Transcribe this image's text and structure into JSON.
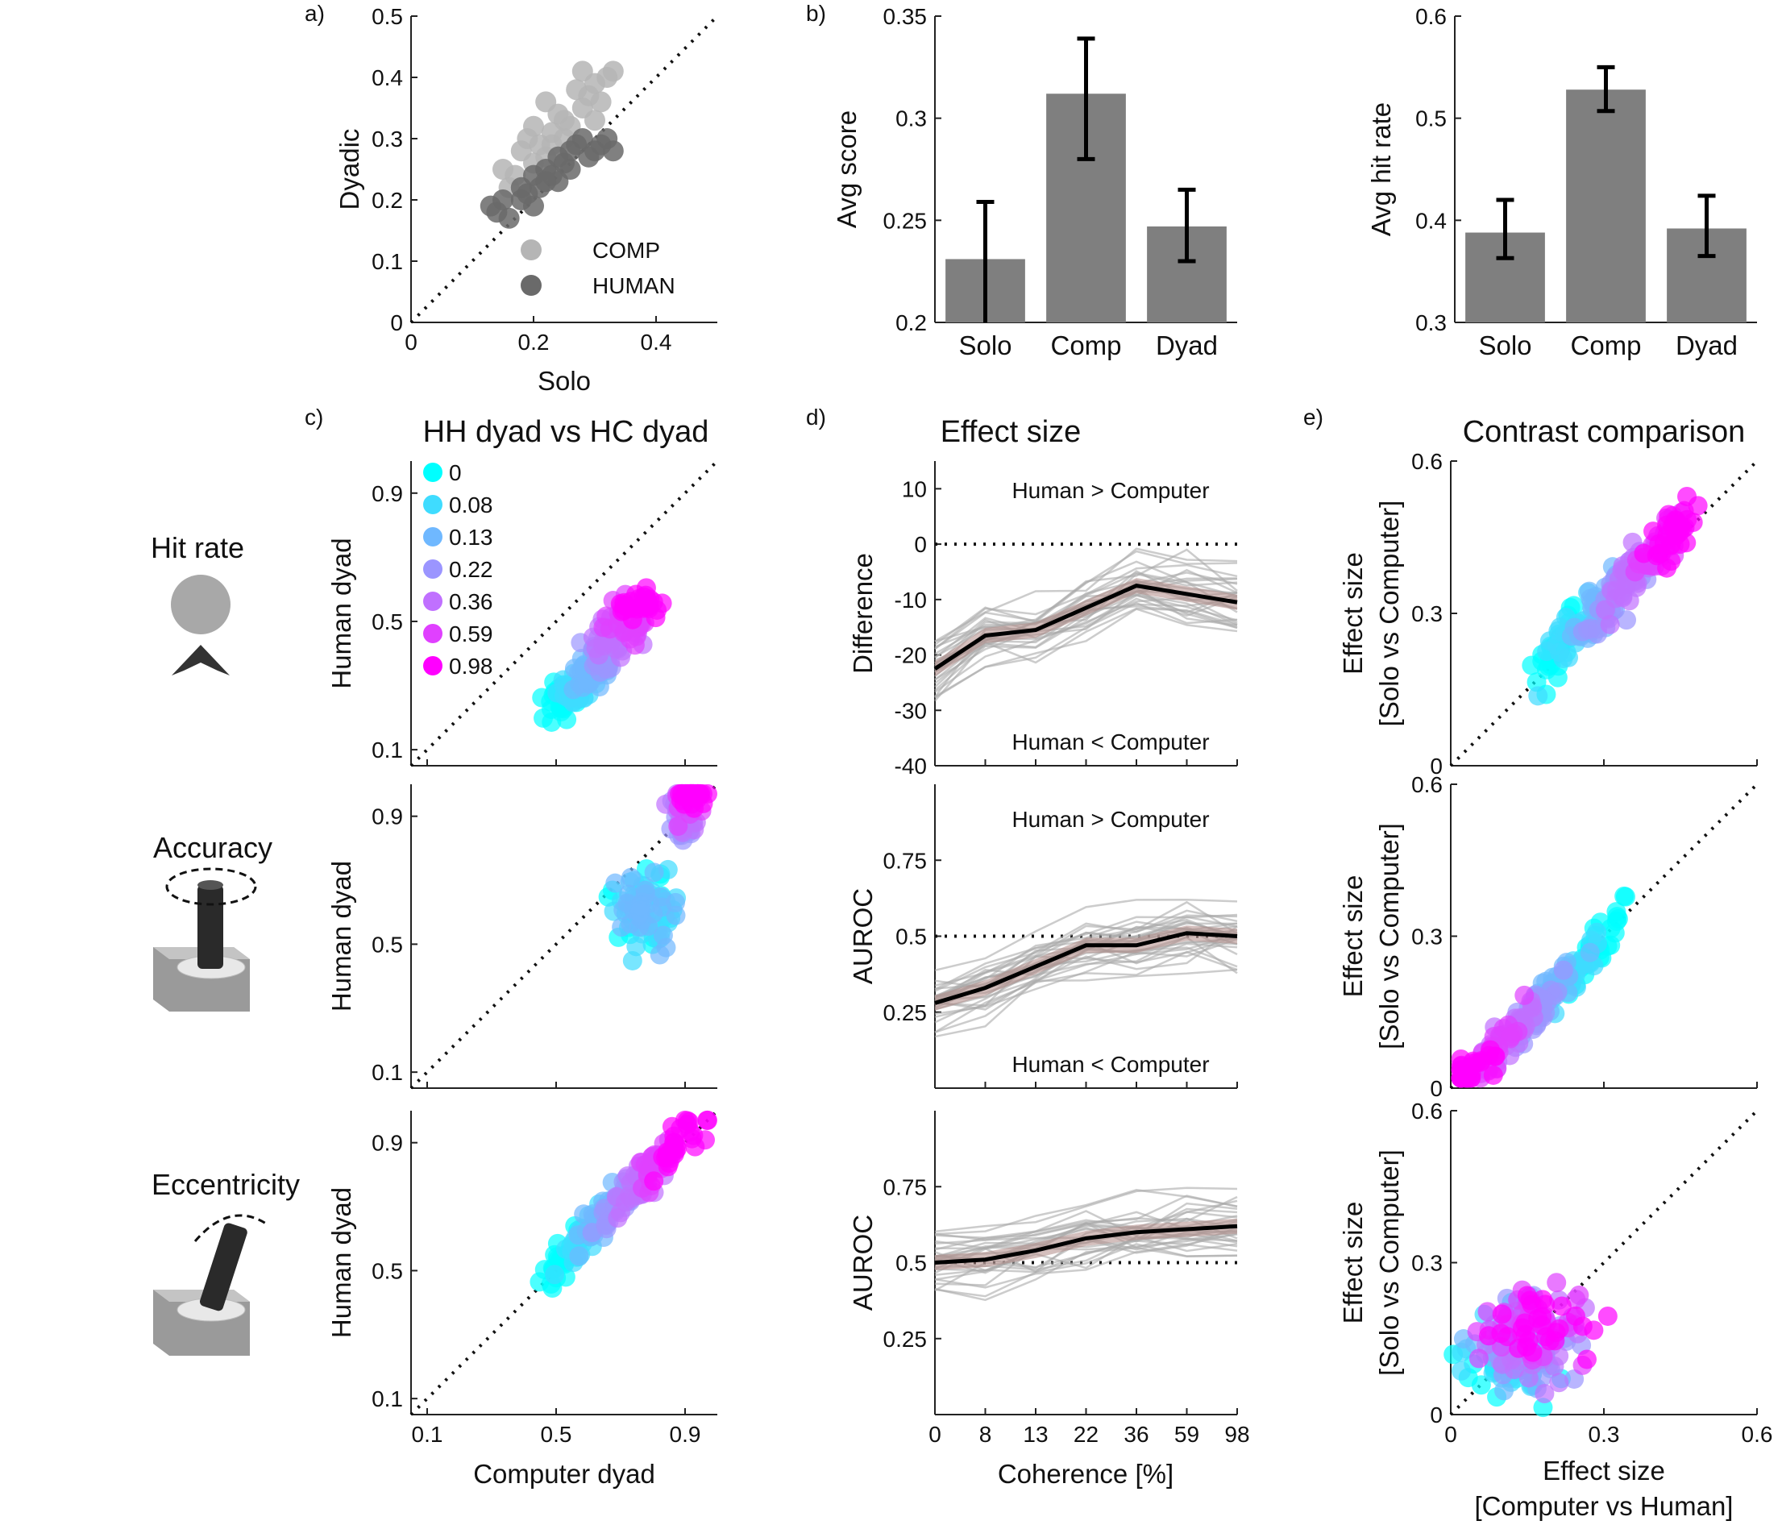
{
  "panel_labels": {
    "a": "a)",
    "b": "b)",
    "c": "c)",
    "d": "d)",
    "e": "e)"
  },
  "row_labels": {
    "hit": "Hit rate",
    "acc": "Accuracy",
    "ecc": "Eccentricity"
  },
  "titles": {
    "c": "HH dyad vs HC dyad",
    "d": "Effect size",
    "e": "Contrast comparison"
  },
  "annotations": {
    "gt": "Human > Computer",
    "lt": "Human < Computer"
  },
  "colors": {
    "comp": "#b5b5b5",
    "human": "#6a6a6a",
    "bar": "#7f7f7f",
    "coherence": [
      "#00ffff",
      "#3fdcff",
      "#6fb8ff",
      "#9b95ff",
      "#c070ff",
      "#e040ff",
      "#ff00ff"
    ],
    "mean_line": "#000000",
    "band": "#b08a86",
    "subject_lines": "#aaaaaa"
  },
  "chart_data": [
    {
      "id": "a",
      "type": "scatter",
      "xlabel": "Solo",
      "ylabel": "Dyadic",
      "xlim": [
        0,
        0.5
      ],
      "ylim": [
        0,
        0.5
      ],
      "xticks": [
        "0",
        "0.2",
        "0.4"
      ],
      "yticks": [
        "0",
        "0.1",
        "0.2",
        "0.3",
        "0.4",
        "0.5"
      ],
      "diagonal": true,
      "legend": "bottom-right",
      "series": [
        {
          "name": "COMP",
          "points": [
            [
              0.22,
              0.36
            ],
            [
              0.24,
              0.34
            ],
            [
              0.2,
              0.32
            ],
            [
              0.19,
              0.3
            ],
            [
              0.21,
              0.29
            ],
            [
              0.23,
              0.31
            ],
            [
              0.25,
              0.33
            ],
            [
              0.27,
              0.38
            ],
            [
              0.28,
              0.41
            ],
            [
              0.3,
              0.39
            ],
            [
              0.33,
              0.41
            ],
            [
              0.32,
              0.4
            ],
            [
              0.26,
              0.32
            ],
            [
              0.28,
              0.35
            ],
            [
              0.3,
              0.33
            ],
            [
              0.22,
              0.27
            ],
            [
              0.2,
              0.26
            ],
            [
              0.18,
              0.28
            ],
            [
              0.17,
              0.24
            ],
            [
              0.15,
              0.25
            ],
            [
              0.16,
              0.22
            ],
            [
              0.23,
              0.29
            ],
            [
              0.25,
              0.3
            ],
            [
              0.29,
              0.37
            ],
            [
              0.31,
              0.36
            ]
          ]
        },
        {
          "name": "HUMAN",
          "points": [
            [
              0.13,
              0.19
            ],
            [
              0.14,
              0.18
            ],
            [
              0.15,
              0.2
            ],
            [
              0.16,
              0.17
            ],
            [
              0.18,
              0.2
            ],
            [
              0.19,
              0.21
            ],
            [
              0.2,
              0.24
            ],
            [
              0.21,
              0.22
            ],
            [
              0.22,
              0.25
            ],
            [
              0.23,
              0.24
            ],
            [
              0.24,
              0.23
            ],
            [
              0.25,
              0.26
            ],
            [
              0.26,
              0.28
            ],
            [
              0.27,
              0.29
            ],
            [
              0.28,
              0.3
            ],
            [
              0.29,
              0.27
            ],
            [
              0.3,
              0.28
            ],
            [
              0.31,
              0.29
            ],
            [
              0.32,
              0.3
            ],
            [
              0.33,
              0.28
            ],
            [
              0.24,
              0.27
            ],
            [
              0.22,
              0.23
            ],
            [
              0.18,
              0.22
            ],
            [
              0.2,
              0.19
            ],
            [
              0.26,
              0.25
            ]
          ]
        }
      ]
    },
    {
      "id": "b1",
      "type": "bar",
      "ylabel": "Avg score",
      "categories": [
        "Solo",
        "Comp",
        "Dyad"
      ],
      "values": [
        0.231,
        0.312,
        0.247
      ],
      "errors": [
        [
          0.2,
          0.259
        ],
        [
          0.28,
          0.339
        ],
        [
          0.23,
          0.265
        ]
      ],
      "ylim": [
        0.2,
        0.35
      ],
      "yticks": [
        "0.2",
        "0.25",
        "0.3",
        "0.35"
      ]
    },
    {
      "id": "b2",
      "type": "bar",
      "ylabel": "Avg hit rate",
      "categories": [
        "Solo",
        "Comp",
        "Dyad"
      ],
      "values": [
        0.388,
        0.528,
        0.392
      ],
      "errors": [
        [
          0.363,
          0.42
        ],
        [
          0.507,
          0.55
        ],
        [
          0.365,
          0.424
        ]
      ],
      "ylim": [
        0.3,
        0.6
      ],
      "yticks": [
        "0.3",
        "0.4",
        "0.5",
        "0.6"
      ]
    },
    {
      "id": "c",
      "type": "scatter",
      "xlabel": "Computer dyad",
      "ylabel": "Human dyad",
      "xlim": [
        0.05,
        1.0
      ],
      "ylim": [
        0.05,
        1.0
      ],
      "xticks": [
        "0.1",
        "0.5",
        "0.9"
      ],
      "yticks": [
        "0.1",
        "0.5",
        "0.9"
      ],
      "legend": {
        "entries": [
          "0",
          "0.08",
          "0.13",
          "0.22",
          "0.36",
          "0.59",
          "0.98"
        ],
        "placement": "top-left"
      },
      "rows": [
        "hit rate",
        "accuracy",
        "eccentricity"
      ]
    },
    {
      "id": "d",
      "type": "line",
      "xlabel": "Coherence [%]",
      "x": [
        "0",
        "8",
        "13",
        "22",
        "36",
        "59",
        "98"
      ],
      "rows": [
        {
          "ylabel": "Difference",
          "ylim": [
            -40,
            15
          ],
          "yticks": [
            "-40",
            "-30",
            "-20",
            "-10",
            "0",
            "10"
          ],
          "reference": 0,
          "mean": [
            -22.5,
            -16.5,
            -15.5,
            -11.5,
            -7.5,
            -9,
            -10.5
          ]
        },
        {
          "ylabel": "AUROC",
          "ylim": [
            0,
            1
          ],
          "yticks": [
            "0.25",
            "0.5",
            "0.75"
          ],
          "reference": 0.5,
          "mean": [
            0.28,
            0.33,
            0.4,
            0.47,
            0.47,
            0.51,
            0.5
          ]
        },
        {
          "ylabel": "AUROC",
          "ylim": [
            0,
            1
          ],
          "yticks": [
            "0.25",
            "0.5",
            "0.75"
          ],
          "reference": 0.5,
          "mean": [
            0.5,
            0.51,
            0.54,
            0.58,
            0.6,
            0.61,
            0.62
          ]
        }
      ]
    },
    {
      "id": "e",
      "type": "scatter",
      "xlabel": "Effect size",
      "xlabel2": "[Computer vs Human]",
      "ylabel": "Effect size",
      "ylabel2": "[Solo vs Computer]",
      "xlim": [
        0,
        0.6
      ],
      "ylim": [
        0,
        0.6
      ],
      "xticks": [
        "0",
        "0.3",
        "0.6"
      ],
      "yticks": [
        "0",
        "0.3",
        "0.6"
      ]
    }
  ]
}
